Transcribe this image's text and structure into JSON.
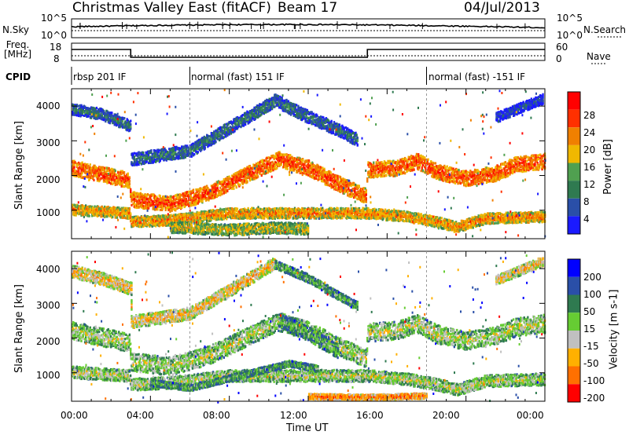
{
  "header": {
    "radar": "Christmas Valley East (fitACF)",
    "beam": "Beam 17",
    "date": "04/Jul/2013"
  },
  "top_panels": {
    "nsky_label": "N.Sky",
    "nsearch_label": "N.Search",
    "freq_label_line1": "Freq.",
    "freq_label_line2": "[MHz]",
    "nave_label": "Nave",
    "cpid_label": "CPID",
    "noise_ticks_left": [
      "10^5",
      "10^0"
    ],
    "noise_ticks_right": [
      "10^5",
      "10^0"
    ],
    "freq_ticks": [
      "18",
      "8"
    ],
    "nave_ticks": [
      "60",
      "0"
    ],
    "cpid_segments": [
      "rbsp 201 IF",
      "normal (fast) 151 IF",
      "normal (fast) -151 IF"
    ]
  },
  "chart_data": [
    {
      "type": "heatmap",
      "name": "power",
      "ylabel": "Slant Range [km]",
      "ylim": [
        180,
        4500
      ],
      "yticks": [
        "1000",
        "2000",
        "3000",
        "4000"
      ],
      "xlim": [
        0,
        24
      ],
      "colorbar_label": "Power [dB]",
      "colorbar_ticks": [
        "4",
        "8",
        "12",
        "16",
        "20",
        "24",
        "28"
      ],
      "colors": [
        "#1a1aff",
        "#2a4fa8",
        "#2f7a50",
        "#50a050",
        "#f0b800",
        "#f08000",
        "#ff3000",
        "#ff0000"
      ],
      "bands": [
        {
          "points": [
            [
              0,
              2200
            ],
            [
              2.9,
              1850
            ],
            [
              3.0,
              1300
            ],
            [
              5,
              1170
            ],
            [
              7,
              1500
            ],
            [
              9,
              2050
            ],
            [
              10.5,
              2450
            ],
            [
              12,
              2200
            ],
            [
              13.5,
              1750
            ],
            [
              14.9,
              1400
            ],
            [
              15.0,
              2150
            ],
            [
              16.5,
              2200
            ],
            [
              17.5,
              2400
            ],
            [
              18.5,
              2100
            ],
            [
              20,
              1900
            ],
            [
              21.5,
              2050
            ],
            [
              22.5,
              2300
            ],
            [
              24,
              2400
            ]
          ],
          "width": 220,
          "level": 6
        },
        {
          "points": [
            [
              0,
              1000
            ],
            [
              2.9,
              900
            ],
            [
              3.0,
              650
            ],
            [
              5,
              700
            ],
            [
              8,
              900
            ],
            [
              10,
              900
            ],
            [
              12,
              900
            ],
            [
              14,
              900
            ],
            [
              15.0,
              900
            ],
            [
              17,
              800
            ],
            [
              18.5,
              650
            ],
            [
              19.5,
              500
            ],
            [
              21,
              750
            ],
            [
              24,
              800
            ]
          ],
          "width": 150,
          "level": 5
        },
        {
          "points": [
            [
              5.0,
              500
            ],
            [
              8,
              420
            ],
            [
              10,
              480
            ],
            [
              12,
              450
            ]
          ],
          "width": 160,
          "level": 4
        },
        {
          "points": [
            [
              0,
              3900
            ],
            [
              1.5,
              3750
            ],
            [
              3,
              3400
            ]
          ],
          "width": 160,
          "level": 2
        },
        {
          "points": [
            [
              3.0,
              2450
            ],
            [
              6,
              2700
            ],
            [
              9,
              3700
            ],
            [
              10.3,
              4150
            ],
            [
              11.5,
              3800
            ],
            [
              13.5,
              3300
            ],
            [
              14.5,
              3000
            ]
          ],
          "width": 180,
          "level": 2
        },
        {
          "points": [
            [
              21.5,
              3650
            ],
            [
              23,
              4000
            ],
            [
              23.9,
              4200
            ]
          ],
          "width": 140,
          "level": 1
        }
      ]
    },
    {
      "type": "heatmap",
      "name": "velocity",
      "ylabel": "Slant Range [km]",
      "ylim": [
        180,
        4500
      ],
      "yticks": [
        "1000",
        "2000",
        "3000",
        "4000"
      ],
      "xlim": [
        0,
        24
      ],
      "xlabel": "Time UT",
      "xticks": [
        "00:00",
        "04:00",
        "08:00",
        "12:00",
        "16:00",
        "20:00",
        "00:00"
      ],
      "colorbar_label": "Velocity [m s-1]",
      "colorbar_ticks": [
        "200",
        "100",
        "50",
        "15",
        "-15",
        "-50",
        "-100",
        "-200"
      ],
      "colors": [
        "#0000ff",
        "#2a4fa8",
        "#2f7a50",
        "#66cc33",
        "#c0c0c0",
        "#ffb000",
        "#ff7000",
        "#ff0000"
      ],
      "bands": [
        {
          "points": [
            [
              0,
              2200
            ],
            [
              2.9,
              1850
            ],
            [
              3.0,
              1300
            ],
            [
              5,
              1170
            ],
            [
              7,
              1500
            ],
            [
              9,
              2050
            ],
            [
              10.5,
              2450
            ],
            [
              12,
              2200
            ],
            [
              13.5,
              1750
            ],
            [
              14.9,
              1400
            ],
            [
              15.0,
              2150
            ],
            [
              16.5,
              2200
            ],
            [
              17.5,
              2400
            ],
            [
              18.5,
              2100
            ],
            [
              20,
              1900
            ],
            [
              21.5,
              2050
            ],
            [
              22.5,
              2300
            ],
            [
              24,
              2400
            ]
          ],
          "width": 260,
          "level": 4
        },
        {
          "points": [
            [
              0,
              1000
            ],
            [
              2.9,
              900
            ],
            [
              3.0,
              650
            ],
            [
              5,
              700
            ],
            [
              8,
              900
            ],
            [
              10,
              900
            ],
            [
              12,
              900
            ],
            [
              14,
              900
            ],
            [
              15.0,
              900
            ],
            [
              17,
              800
            ],
            [
              18.5,
              650
            ],
            [
              19.5,
              500
            ],
            [
              21,
              750
            ],
            [
              24,
              800
            ]
          ],
          "width": 170,
          "level": 4
        },
        {
          "points": [
            [
              10.5,
              2500
            ],
            [
              12,
              2100
            ],
            [
              13.5,
              1600
            ]
          ],
          "width": 200,
          "level": 3
        },
        {
          "points": [
            [
              4,
              700
            ],
            [
              6,
              550
            ],
            [
              11,
              1250
            ],
            [
              12.5,
              1100
            ]
          ],
          "width": 90,
          "level": 3
        },
        {
          "points": [
            [
              0,
              3900
            ],
            [
              1.5,
              3700
            ],
            [
              3,
              3400
            ],
            [
              3.0,
              2450
            ],
            [
              6,
              2700
            ],
            [
              9,
              3700
            ],
            [
              10.3,
              4150
            ]
          ],
          "width": 180,
          "level": 5
        },
        {
          "points": [
            [
              10.3,
              4100
            ],
            [
              12,
              3700
            ],
            [
              13.5,
              3200
            ],
            [
              14.5,
              2900
            ]
          ],
          "width": 120,
          "level": 3
        },
        {
          "points": [
            [
              21.5,
              3650
            ],
            [
              23,
              4000
            ],
            [
              23.9,
              4200
            ]
          ],
          "width": 140,
          "level": 5
        },
        {
          "points": [
            [
              12,
              300
            ],
            [
              15,
              280
            ],
            [
              18,
              320
            ]
          ],
          "width": 80,
          "level": 6
        }
      ]
    }
  ]
}
